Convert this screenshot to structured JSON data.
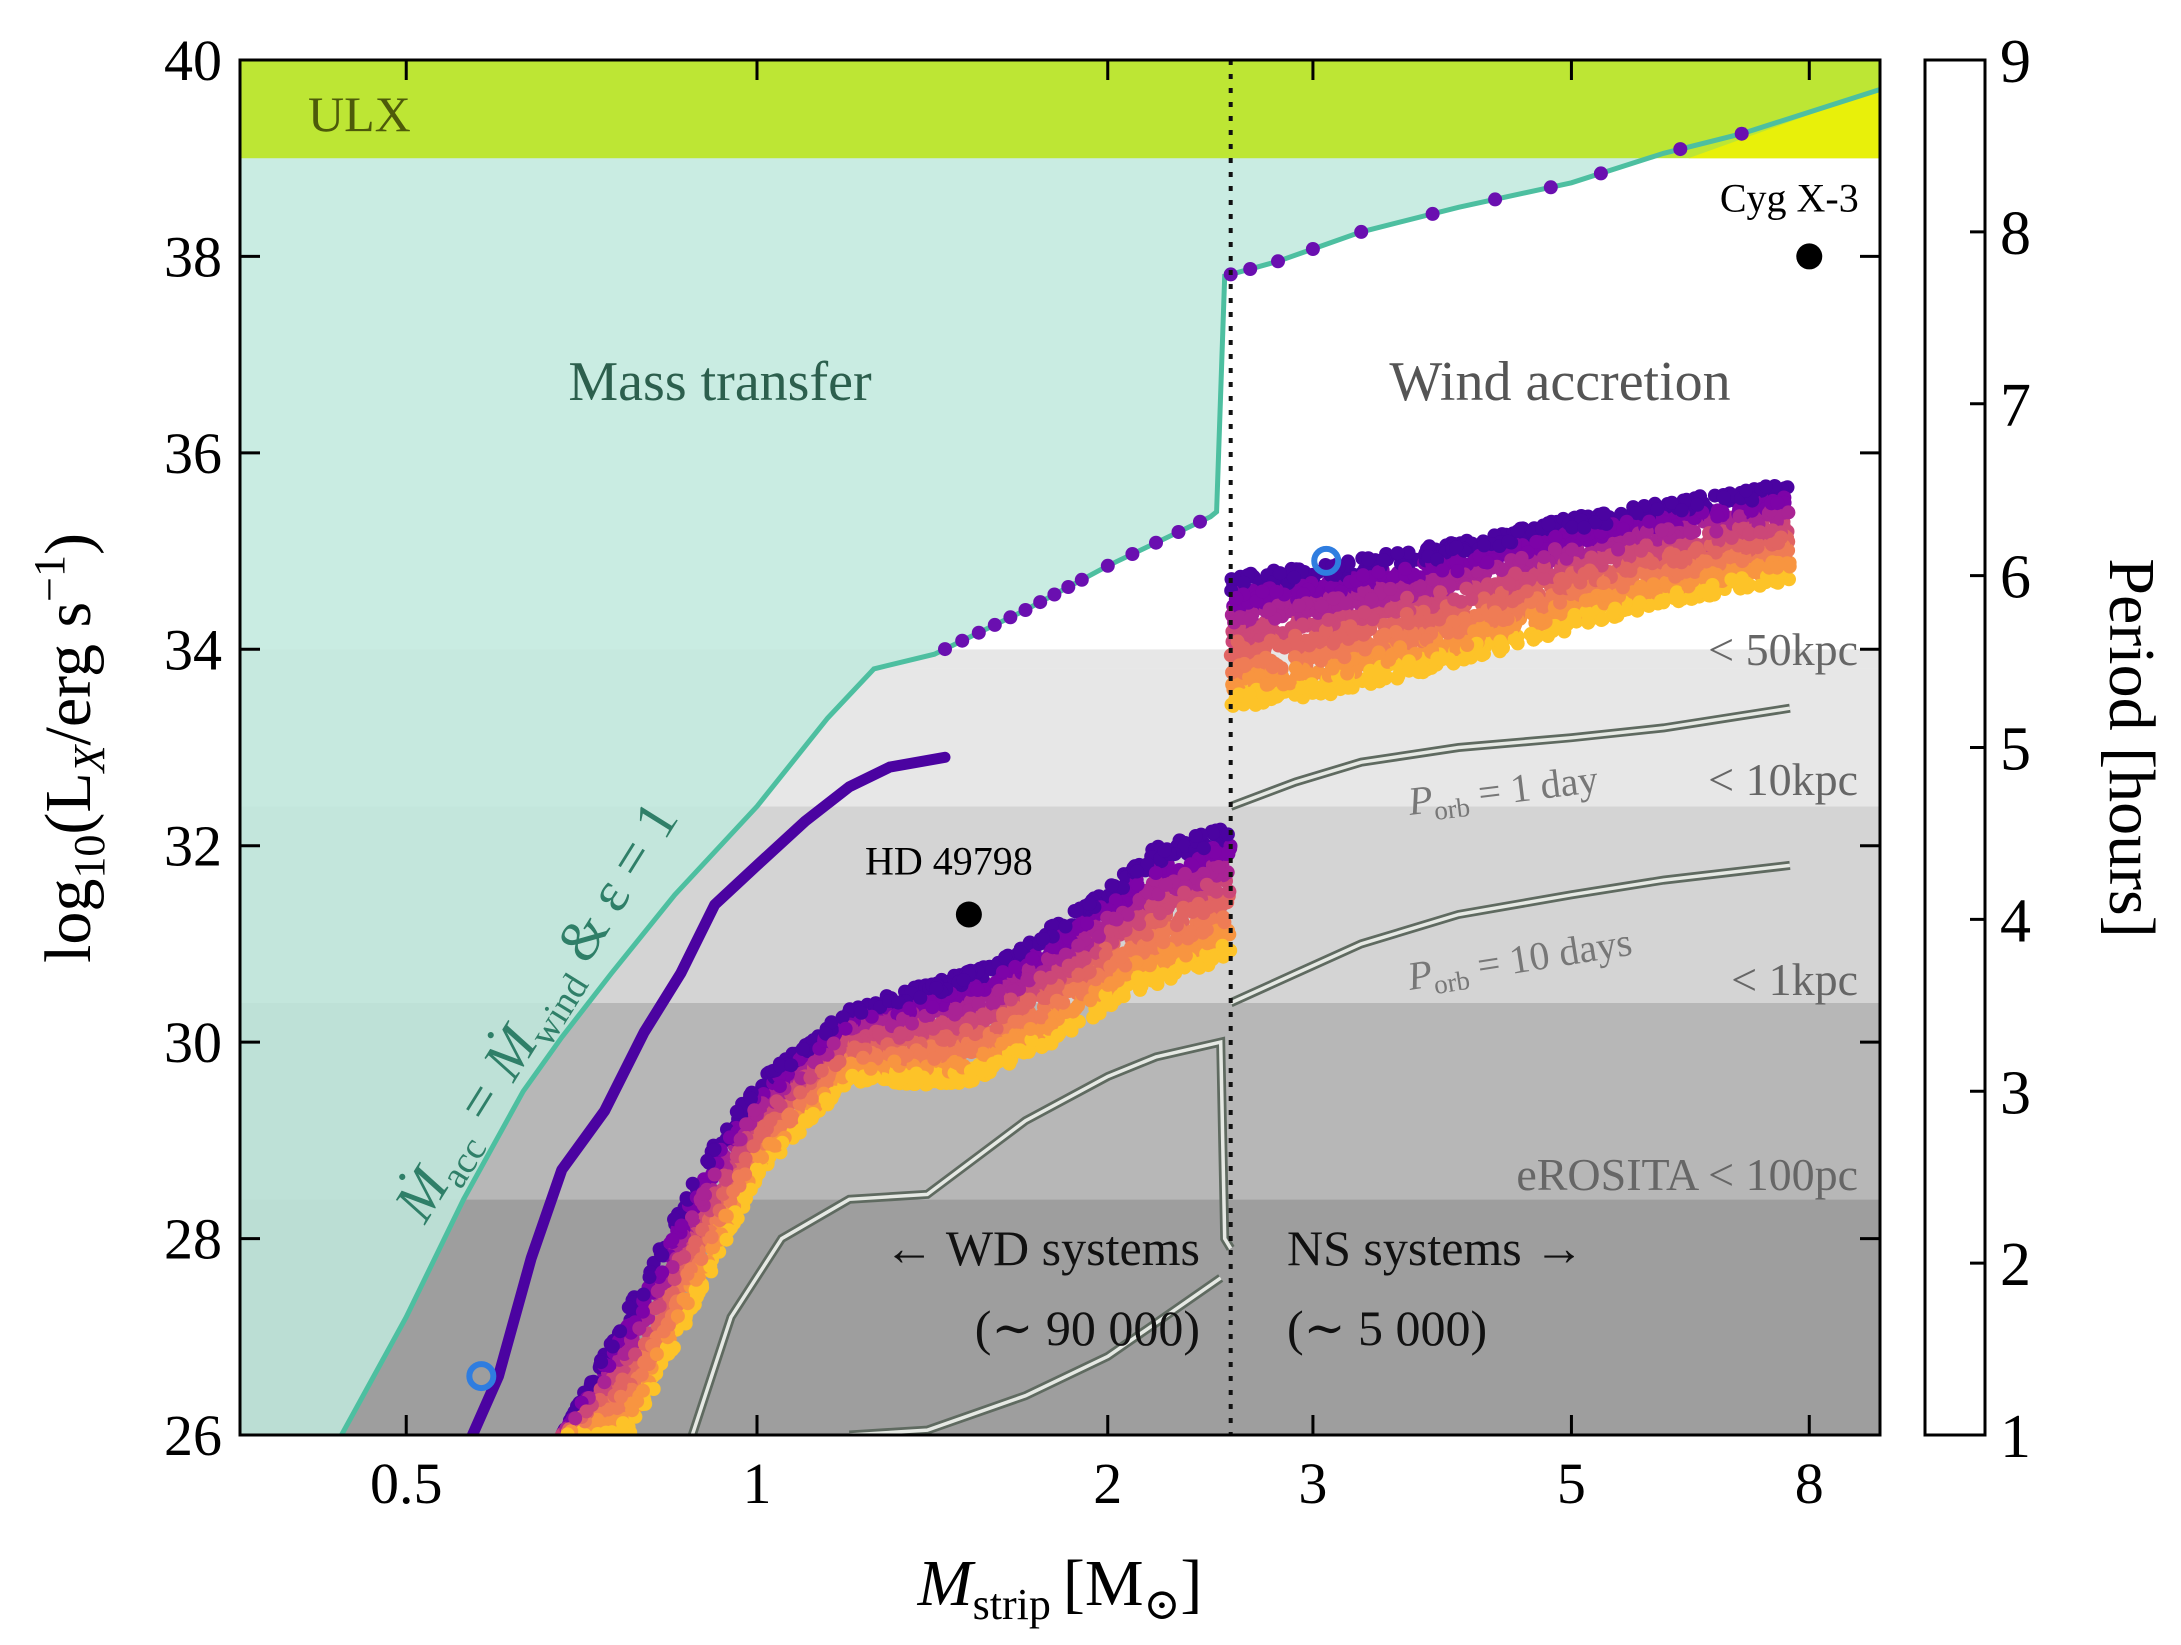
{
  "chart_data": {
    "type": "scatter",
    "xscale": "log",
    "xlim": [
      0.36,
      9.2
    ],
    "ylim": [
      26,
      40
    ],
    "xlabel": {
      "main": "M",
      "sub": "strip",
      "unit": "[M",
      "unit_sub": "⊙",
      "unit_close": "]"
    },
    "ylabel": {
      "pre": "log",
      "pre_sub": "10",
      "open": "(L",
      "sub": "X",
      "rest": "/erg s",
      "sup": "−1",
      "close": ")"
    },
    "xticks": [
      {
        "value": 0.5,
        "label": "0.5"
      },
      {
        "value": 1,
        "label": "1"
      },
      {
        "value": 2,
        "label": "2"
      },
      {
        "value": 3,
        "label": "3"
      },
      {
        "value": 5,
        "label": "5"
      },
      {
        "value": 8,
        "label": "8"
      }
    ],
    "yticks": [
      {
        "value": 26,
        "label": "26"
      },
      {
        "value": 28,
        "label": "28"
      },
      {
        "value": 30,
        "label": "30"
      },
      {
        "value": 32,
        "label": "32"
      },
      {
        "value": 34,
        "label": "34"
      },
      {
        "value": 36,
        "label": "36"
      },
      {
        "value": 38,
        "label": "38"
      },
      {
        "value": 40,
        "label": "40"
      }
    ],
    "colorbar": {
      "label": "Period [hours]",
      "min": 1,
      "max": 9,
      "ticks": [
        "1",
        "2",
        "3",
        "4",
        "5",
        "6",
        "7",
        "8",
        "9"
      ],
      "colors": [
        "#4b03a1",
        "#7d03a8",
        "#a92395",
        "#cc4778",
        "#e16462",
        "#ef7c55",
        "#f89540",
        "#fdc328"
      ]
    },
    "ulx": {
      "label": "ULX",
      "min_log_lx": 39,
      "color": "#bde634",
      "bright_color": "#e8f00a"
    },
    "regions": {
      "mass_transfer": "Mass transfer",
      "wind_accretion": "Wind accretion"
    },
    "divider_mass": 2.55,
    "sensitivity_bands": [
      {
        "label": "< 50kpc",
        "min": 33.8,
        "max": 34.0,
        "fill": "#e7e7e7"
      },
      {
        "label": "< 10kpc",
        "min": 32.4,
        "max": 33.8,
        "fill": "#e7e7e7"
      },
      {
        "label": "< 1kpc",
        "min": 30.4,
        "max": 32.4,
        "fill": "#d4d4d4"
      },
      {
        "label": "eROSITA < 100pc",
        "min": 28.4,
        "max": 30.4,
        "fill": "#b7b7b7"
      },
      {
        "label": "",
        "min": 26,
        "max": 28.4,
        "fill": "#9e9e9e"
      }
    ],
    "curve_label": {
      "pre": "Ṁ",
      "sub1": "acc",
      "mid": " = Ṁ",
      "sub2": "wind",
      "post": " & ε = 1"
    },
    "mass_transfer_curve": [
      [
        0.44,
        26
      ],
      [
        0.5,
        27.2
      ],
      [
        0.56,
        28.4
      ],
      [
        0.63,
        29.5
      ],
      [
        0.68,
        30.05
      ],
      [
        0.75,
        30.7
      ],
      [
        0.85,
        31.5
      ],
      [
        1.0,
        32.4
      ],
      [
        1.15,
        33.3
      ],
      [
        1.26,
        33.8
      ],
      [
        1.42,
        33.95
      ],
      [
        1.7,
        34.4
      ],
      [
        2.0,
        34.85
      ],
      [
        2.45,
        35.35
      ],
      [
        2.48,
        35.4
      ],
      [
        2.52,
        37.8
      ],
      [
        2.8,
        37.95
      ],
      [
        3.3,
        38.25
      ],
      [
        4.0,
        38.5
      ],
      [
        5.0,
        38.75
      ],
      [
        6.0,
        39.05
      ],
      [
        7.0,
        39.25
      ],
      [
        9.2,
        39.7
      ]
    ],
    "mass_transfer_dots_x": [
      1.45,
      1.5,
      1.55,
      1.6,
      1.65,
      1.7,
      1.75,
      1.8,
      1.85,
      1.9,
      2.0,
      2.1,
      2.2,
      2.3,
      2.4,
      2.55,
      2.65,
      2.8,
      3.0,
      3.3,
      3.8,
      4.3,
      4.8,
      5.3,
      6.2,
      7.0
    ],
    "period_1h_curve": [
      [
        0.57,
        26
      ],
      [
        0.6,
        26.6
      ],
      [
        0.64,
        27.8
      ],
      [
        0.68,
        28.7
      ],
      [
        0.74,
        29.3
      ],
      [
        0.8,
        30.1
      ],
      [
        0.86,
        30.7
      ],
      [
        0.92,
        31.4
      ],
      [
        1.0,
        31.8
      ],
      [
        1.1,
        32.25
      ],
      [
        1.2,
        32.6
      ],
      [
        1.3,
        32.8
      ],
      [
        1.45,
        32.9
      ]
    ],
    "blue_circles": [
      [
        0.58,
        26.6
      ],
      [
        3.08,
        34.9
      ]
    ],
    "wd_band": {
      "x0": 0.68,
      "x1": 2.55,
      "spread_mass": 0.18,
      "top": [
        [
          0.68,
          26
        ],
        [
          0.8,
          27.6
        ],
        [
          0.9,
          28.8
        ],
        [
          1.0,
          29.6
        ],
        [
          1.2,
          30.35
        ],
        [
          1.4,
          30.6
        ],
        [
          1.6,
          30.8
        ],
        [
          1.8,
          31.2
        ],
        [
          2.0,
          31.6
        ],
        [
          2.2,
          32.0
        ],
        [
          2.55,
          32.2
        ]
      ],
      "bottom": [
        [
          0.78,
          26
        ],
        [
          0.9,
          27.5
        ],
        [
          1.0,
          28.6
        ],
        [
          1.2,
          29.6
        ],
        [
          1.5,
          29.55
        ],
        [
          1.8,
          30.0
        ],
        [
          2.1,
          30.5
        ],
        [
          2.55,
          30.85
        ]
      ]
    },
    "ns_band": {
      "x0": 2.55,
      "x1": 7.7,
      "top": [
        [
          2.55,
          34.75
        ],
        [
          3.0,
          34.85
        ],
        [
          4.0,
          35.1
        ],
        [
          5.0,
          35.35
        ],
        [
          6.0,
          35.5
        ],
        [
          7.7,
          35.7
        ]
      ],
      "bottom": [
        [
          2.55,
          33.4
        ],
        [
          3.0,
          33.5
        ],
        [
          4.0,
          33.85
        ],
        [
          5.0,
          34.2
        ],
        [
          6.0,
          34.45
        ],
        [
          7.7,
          34.7
        ]
      ]
    },
    "porb_curves": [
      {
        "label": "P_orb = 1 day",
        "points": [
          [
            2.55,
            32.4
          ],
          [
            2.9,
            32.65
          ],
          [
            3.3,
            32.85
          ],
          [
            4.0,
            33.0
          ],
          [
            5.0,
            33.1
          ],
          [
            6.0,
            33.2
          ],
          [
            7.7,
            33.4
          ]
        ]
      },
      {
        "label": "P_orb = 10 days",
        "points": [
          [
            2.55,
            30.4
          ],
          [
            2.9,
            30.7
          ],
          [
            3.3,
            31.0
          ],
          [
            4.0,
            31.3
          ],
          [
            5.0,
            31.5
          ],
          [
            6.0,
            31.65
          ],
          [
            7.7,
            31.8
          ]
        ]
      },
      {
        "label": "",
        "points": [
          [
            0.88,
            26
          ],
          [
            0.95,
            27.2
          ],
          [
            1.05,
            28.0
          ],
          [
            1.2,
            28.4
          ],
          [
            1.4,
            28.45
          ],
          [
            1.7,
            29.2
          ],
          [
            2.0,
            29.65
          ],
          [
            2.2,
            29.85
          ],
          [
            2.5,
            30.0
          ],
          [
            2.52,
            28.0
          ],
          [
            2.55,
            27.9
          ]
        ]
      },
      {
        "label": "",
        "points": [
          [
            1.2,
            26
          ],
          [
            1.4,
            26.05
          ],
          [
            1.7,
            26.4
          ],
          [
            2.0,
            26.8
          ],
          [
            2.3,
            27.3
          ],
          [
            2.5,
            27.6
          ]
        ]
      }
    ],
    "porb_label_parts": [
      {
        "p": "P",
        "sub": "orb",
        "rest": " = 1 day"
      },
      {
        "p": "P",
        "sub": "orb",
        "rest": " = 10 days"
      }
    ],
    "points": [
      {
        "name": "HD 49798",
        "x": 1.52,
        "y": 31.3
      },
      {
        "name": "Cyg X-3",
        "x": 8.0,
        "y": 38.0
      }
    ],
    "systems": {
      "wd": {
        "line1": "← WD systems",
        "line2": "(∼ 90 000)"
      },
      "ns": {
        "line1": "NS systems →",
        "line2": "(∼ 5 000)"
      }
    }
  }
}
